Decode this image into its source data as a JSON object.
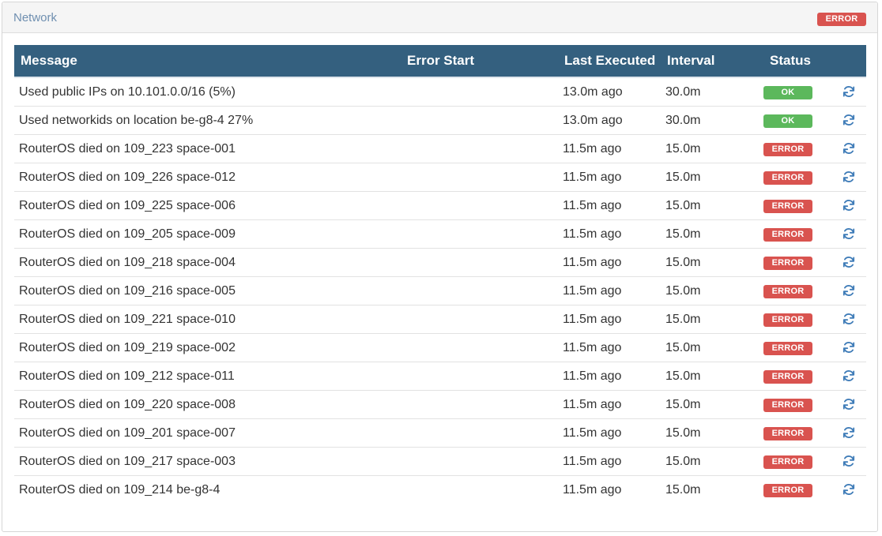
{
  "panel": {
    "title": "Network",
    "status_label": "ERROR"
  },
  "table": {
    "headers": {
      "message": "Message",
      "error_start": "Error Start",
      "last_executed": "Last Executed",
      "interval": "Interval",
      "status": "Status"
    },
    "rows": [
      {
        "message": "Used public IPs on 10.101.0.0/16 (5%)",
        "error_start": "",
        "last_executed": "13.0m ago",
        "interval": "30.0m",
        "status": "OK"
      },
      {
        "message": "Used networkids on location be-g8-4 27%",
        "error_start": "",
        "last_executed": "13.0m ago",
        "interval": "30.0m",
        "status": "OK"
      },
      {
        "message": "RouterOS died on 109_223 space-001",
        "error_start": "",
        "last_executed": "11.5m ago",
        "interval": "15.0m",
        "status": "ERROR"
      },
      {
        "message": "RouterOS died on 109_226 space-012",
        "error_start": "",
        "last_executed": "11.5m ago",
        "interval": "15.0m",
        "status": "ERROR"
      },
      {
        "message": "RouterOS died on 109_225 space-006",
        "error_start": "",
        "last_executed": "11.5m ago",
        "interval": "15.0m",
        "status": "ERROR"
      },
      {
        "message": "RouterOS died on 109_205 space-009",
        "error_start": "",
        "last_executed": "11.5m ago",
        "interval": "15.0m",
        "status": "ERROR"
      },
      {
        "message": "RouterOS died on 109_218 space-004",
        "error_start": "",
        "last_executed": "11.5m ago",
        "interval": "15.0m",
        "status": "ERROR"
      },
      {
        "message": "RouterOS died on 109_216 space-005",
        "error_start": "",
        "last_executed": "11.5m ago",
        "interval": "15.0m",
        "status": "ERROR"
      },
      {
        "message": "RouterOS died on 109_221 space-010",
        "error_start": "",
        "last_executed": "11.5m ago",
        "interval": "15.0m",
        "status": "ERROR"
      },
      {
        "message": "RouterOS died on 109_219 space-002",
        "error_start": "",
        "last_executed": "11.5m ago",
        "interval": "15.0m",
        "status": "ERROR"
      },
      {
        "message": "RouterOS died on 109_212 space-011",
        "error_start": "",
        "last_executed": "11.5m ago",
        "interval": "15.0m",
        "status": "ERROR"
      },
      {
        "message": "RouterOS died on 109_220 space-008",
        "error_start": "",
        "last_executed": "11.5m ago",
        "interval": "15.0m",
        "status": "ERROR"
      },
      {
        "message": "RouterOS died on 109_201 space-007",
        "error_start": "",
        "last_executed": "11.5m ago",
        "interval": "15.0m",
        "status": "ERROR"
      },
      {
        "message": "RouterOS died on 109_217 space-003",
        "error_start": "",
        "last_executed": "11.5m ago",
        "interval": "15.0m",
        "status": "ERROR"
      },
      {
        "message": "RouterOS died on 109_214 be-g8-4",
        "error_start": "",
        "last_executed": "11.5m ago",
        "interval": "15.0m",
        "status": "ERROR"
      }
    ],
    "action_icon": "refresh-icon"
  },
  "colors": {
    "header_bg": "#34607f",
    "title": "#6f8fb0",
    "error": "#d9534f",
    "ok": "#5cb85c",
    "icon": "#3f7cb8"
  }
}
